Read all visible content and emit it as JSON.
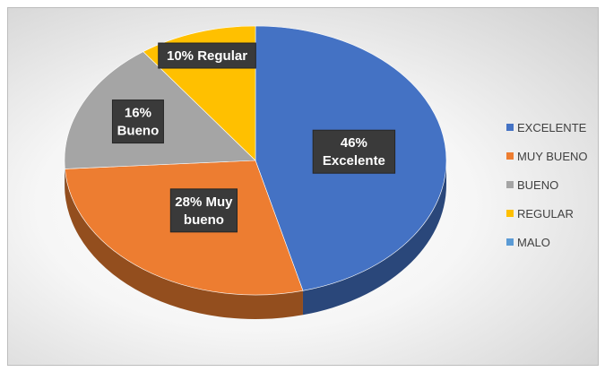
{
  "chart_data": {
    "type": "pie",
    "style": "3d",
    "categories": [
      "EXCELENTE",
      "MUY BUENO",
      "BUENO",
      "REGULAR",
      "MALO"
    ],
    "values": [
      46,
      28,
      16,
      10,
      0
    ],
    "colors": [
      "#4472c4",
      "#ed7d31",
      "#a5a5a5",
      "#ffc000",
      "#5b9bd5"
    ],
    "data_labels": [
      [
        "46%",
        "Excelente"
      ],
      [
        "28% Muy",
        "bueno"
      ],
      [
        "16%",
        "Bueno"
      ],
      [
        "10% Regular"
      ],
      []
    ],
    "legend_position": "right",
    "title": ""
  }
}
